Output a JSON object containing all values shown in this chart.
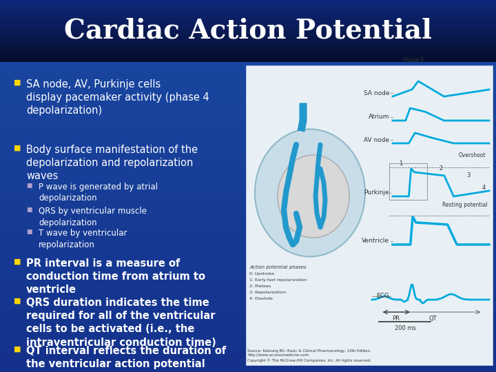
{
  "title": "Cardiac Action Potential",
  "title_color": "#FFFFFF",
  "title_fontsize": 28,
  "bg_top": "#050e2d",
  "bg_content": "#1a3a9a",
  "bg_title_gradient_start": "#050e2d",
  "bg_title_gradient_end": "#0a1a6e",
  "bullet_color": "#FFD700",
  "sub_bullet_color": "#B0A0CC",
  "text_color": "#FFFFFF",
  "bullet_fontsize": 10.5,
  "sub_bullet_fontsize": 8.5,
  "image_bg": "#e8f0f5",
  "image_border": "#ccddee",
  "trace_color": "#00aadd",
  "label_color": "#333333",
  "bullet1": "SA node, AV, Purkinje cells\ndisplay pacemaker activity (phase 4\ndepolarization)",
  "bullet2": "Body surface manifestation of the\ndepolarization and repolarization\nwaves",
  "sub1": "P wave is generated by atrial\ndepolarization",
  "sub2": "QRS by ventricular muscle\ndepolarization",
  "sub3": "T wave by ventricular\nrepolarization",
  "bullet3": "PR interval is a measure of\nconduction time from atrium to\nventricle",
  "bullet4": "QRS duration indicates the time\nrequired for all of the ventricular\ncells to be activated (i.e., the\nintraventricular conduction time)",
  "bullet5": "QT interval reflects the duration of\nthe ventricular action potential"
}
